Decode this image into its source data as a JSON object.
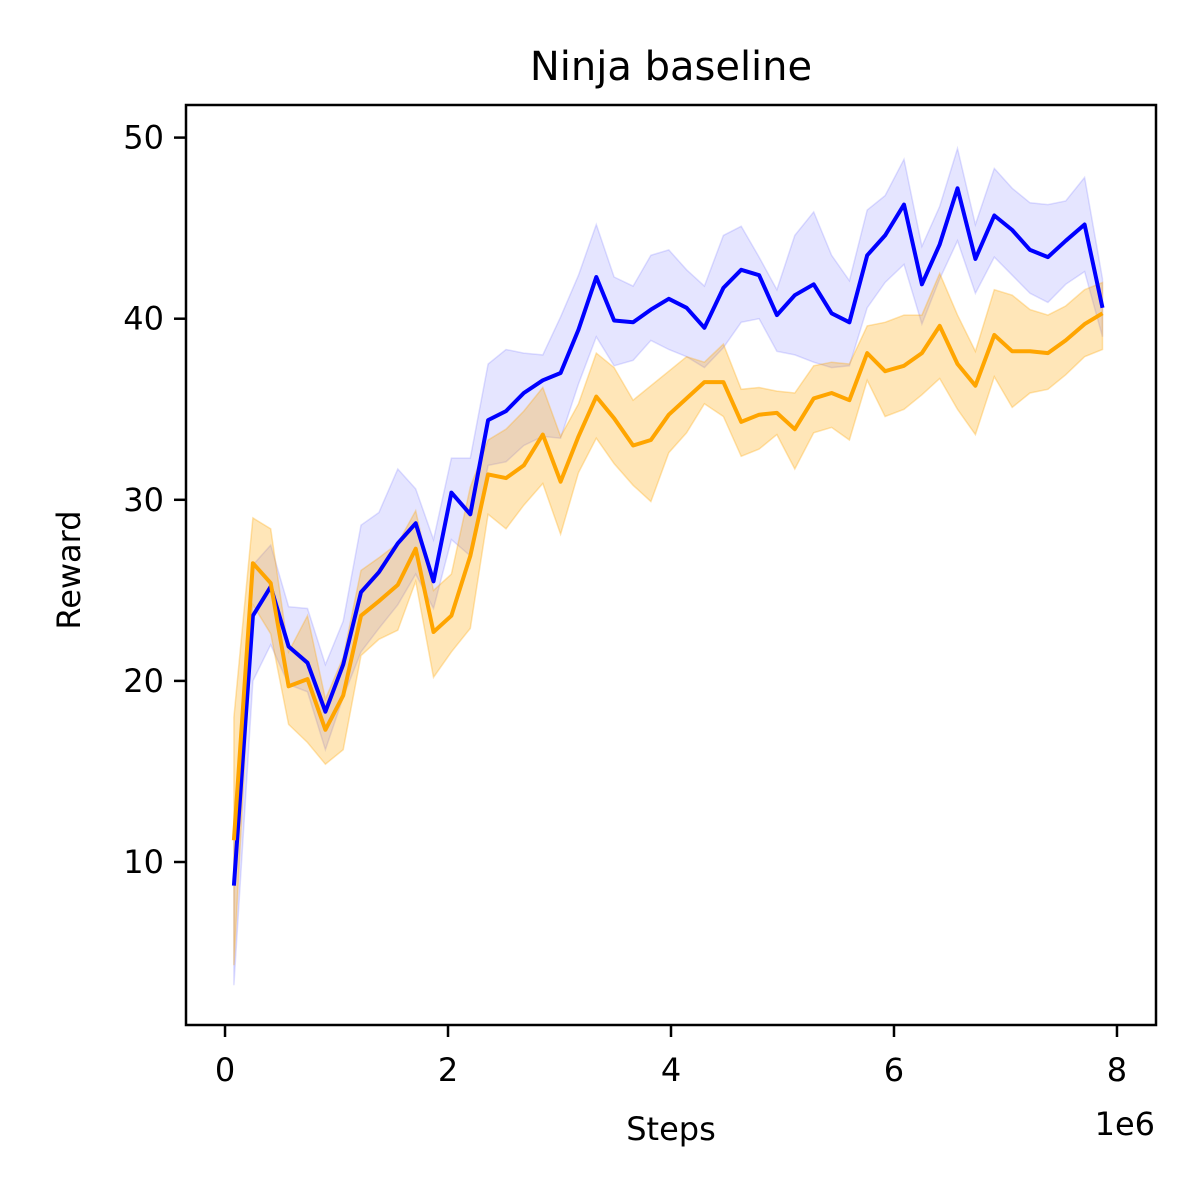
{
  "chart_data": {
    "type": "line",
    "title": "Ninja baseline",
    "xlabel": "Steps",
    "ylabel": "Reward",
    "x_offset_label": "1e6",
    "xlim": [
      -0.35,
      8.35
    ],
    "ylim": [
      1.0,
      51.8
    ],
    "xticks": [
      0,
      2,
      4,
      6,
      8
    ],
    "xtick_labels": [
      "0",
      "2",
      "4",
      "6",
      "8"
    ],
    "yticks": [
      10,
      20,
      30,
      40,
      50
    ],
    "ytick_labels": [
      "10",
      "20",
      "30",
      "40",
      "50"
    ],
    "grid": false,
    "legend": "none",
    "x": [
      0.08,
      0.25,
      0.41,
      0.57,
      0.74,
      0.9,
      1.06,
      1.22,
      1.38,
      1.55,
      1.71,
      1.87,
      2.03,
      2.2,
      2.36,
      2.52,
      2.68,
      2.85,
      3.01,
      3.17,
      3.33,
      3.49,
      3.66,
      3.82,
      3.98,
      4.14,
      4.3,
      4.47,
      4.63,
      4.79,
      4.95,
      5.11,
      5.28,
      5.44,
      5.6,
      5.76,
      5.92,
      6.09,
      6.25,
      6.41,
      6.57,
      6.73,
      6.9,
      7.06,
      7.22,
      7.38,
      7.54,
      7.71,
      7.87
    ],
    "series": [
      {
        "color": "#0000ff",
        "mean": [
          8.7,
          23.6,
          25.2,
          21.9,
          21.0,
          18.3,
          20.9,
          24.9,
          26.0,
          27.6,
          28.7,
          25.5,
          30.4,
          29.2,
          34.4,
          34.9,
          35.9,
          36.6,
          37.0,
          39.4,
          42.3,
          39.9,
          39.8,
          40.5,
          41.1,
          40.6,
          39.5,
          41.7,
          42.7,
          42.4,
          40.2,
          41.3,
          41.9,
          40.3,
          39.8,
          43.5,
          44.6,
          46.3,
          41.9,
          44.1,
          47.2,
          43.3,
          45.7,
          44.9,
          43.8,
          43.4,
          44.3,
          45.2,
          40.6
        ],
        "lower": [
          3.2,
          20.0,
          22.0,
          19.8,
          19.4,
          16.2,
          19.1,
          21.6,
          22.9,
          24.2,
          25.9,
          24.0,
          27.8,
          26.9,
          31.9,
          32.1,
          33.0,
          33.5,
          33.4,
          36.4,
          39.0,
          37.4,
          37.7,
          38.8,
          38.3,
          37.9,
          37.3,
          38.4,
          39.8,
          40.0,
          38.2,
          38.0,
          37.6,
          37.3,
          37.4,
          40.6,
          42.0,
          43.0,
          39.7,
          42.2,
          44.3,
          41.4,
          43.4,
          42.4,
          41.4,
          40.9,
          41.9,
          42.6,
          39.0
        ],
        "upper": [
          11.6,
          26.4,
          27.5,
          24.1,
          24.0,
          20.9,
          23.3,
          28.6,
          29.3,
          31.7,
          30.6,
          27.8,
          32.3,
          32.3,
          37.5,
          38.3,
          38.1,
          38.0,
          40.1,
          42.4,
          45.2,
          42.3,
          41.8,
          43.5,
          43.8,
          42.7,
          41.8,
          44.6,
          45.1,
          43.4,
          41.6,
          44.6,
          45.9,
          43.5,
          42.1,
          46.0,
          46.8,
          48.8,
          44.0,
          46.2,
          49.4,
          45.2,
          48.3,
          47.2,
          46.4,
          46.3,
          46.5,
          47.8,
          42.2
        ]
      },
      {
        "color": "#ffa500",
        "mean": [
          11.2,
          26.5,
          25.4,
          19.7,
          20.1,
          17.3,
          19.2,
          23.6,
          24.4,
          25.3,
          27.3,
          22.7,
          23.6,
          26.9,
          31.4,
          31.2,
          31.9,
          33.6,
          31.0,
          33.5,
          35.7,
          34.5,
          33.0,
          33.3,
          34.7,
          35.6,
          36.5,
          36.5,
          34.3,
          34.7,
          34.8,
          33.9,
          35.6,
          35.9,
          35.5,
          38.1,
          37.1,
          37.4,
          38.1,
          39.6,
          37.5,
          36.3,
          39.1,
          38.2,
          38.2,
          38.1,
          38.8,
          39.7,
          40.3
        ],
        "lower": [
          4.3,
          24.2,
          22.6,
          17.6,
          16.6,
          15.4,
          16.2,
          21.4,
          22.3,
          22.8,
          25.5,
          20.2,
          21.6,
          22.9,
          29.2,
          28.4,
          29.7,
          30.9,
          28.1,
          31.5,
          33.4,
          32.0,
          30.8,
          29.9,
          32.6,
          33.7,
          35.3,
          34.6,
          32.4,
          32.8,
          33.6,
          31.7,
          33.7,
          34.0,
          33.3,
          36.6,
          34.6,
          35.0,
          35.8,
          36.7,
          35.0,
          33.6,
          36.8,
          35.1,
          35.9,
          36.1,
          36.9,
          37.9,
          38.3
        ],
        "upper": [
          18.0,
          29.0,
          28.4,
          21.6,
          23.6,
          19.0,
          21.3,
          26.1,
          26.8,
          27.6,
          29.4,
          25.0,
          25.9,
          30.7,
          33.3,
          33.9,
          34.9,
          36.2,
          33.5,
          35.3,
          38.1,
          37.3,
          35.5,
          36.3,
          37.1,
          37.9,
          37.6,
          38.6,
          36.1,
          36.2,
          36.0,
          35.9,
          37.4,
          37.6,
          37.5,
          39.6,
          39.8,
          40.2,
          40.2,
          42.5,
          40.2,
          38.2,
          41.6,
          41.3,
          40.5,
          40.2,
          40.7,
          41.6,
          42.0
        ]
      }
    ]
  }
}
